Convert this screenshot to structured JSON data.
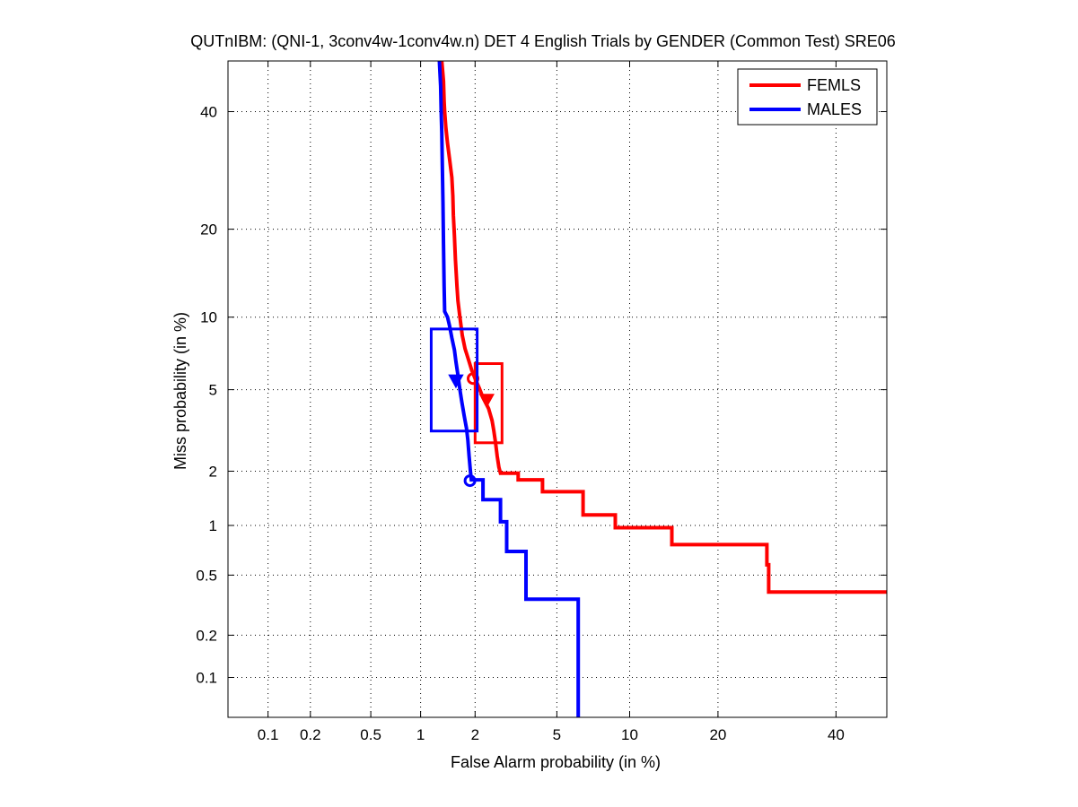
{
  "chart_data": {
    "type": "line",
    "subtype": "DET (normal deviate scale)",
    "title": "QUTnIBM: (QNI-1, 3conv4w-1conv4w.n) DET 4 English Trials by GENDER (Common Test) SRE06",
    "xlabel": "False Alarm probability (in %)",
    "ylabel": "Miss probability (in %)",
    "xlim": [
      0.05,
      50
    ],
    "ylim": [
      0.05,
      50
    ],
    "x_ticks": [
      0.1,
      0.2,
      0.5,
      1,
      2,
      5,
      10,
      20,
      40
    ],
    "x_tick_labels": [
      "0.1",
      "0.2",
      "0.5",
      "1",
      "2",
      "5",
      "10",
      "20",
      "40"
    ],
    "y_ticks": [
      0.1,
      0.2,
      0.5,
      1,
      2,
      5,
      10,
      20,
      40
    ],
    "y_tick_labels": [
      "0.1",
      "0.2",
      "0.5",
      "1",
      "2",
      "5",
      "10",
      "20",
      "40"
    ],
    "grid": true,
    "legend_position": "top-right",
    "series": [
      {
        "name": "FEMLS",
        "color": "#ff0000",
        "points": [
          [
            1.32,
            50
          ],
          [
            1.35,
            46
          ],
          [
            1.36,
            42
          ],
          [
            1.37,
            40
          ],
          [
            1.39,
            37
          ],
          [
            1.42,
            34
          ],
          [
            1.46,
            31
          ],
          [
            1.5,
            28
          ],
          [
            1.52,
            25
          ],
          [
            1.53,
            22
          ],
          [
            1.55,
            19
          ],
          [
            1.57,
            16
          ],
          [
            1.6,
            13
          ],
          [
            1.62,
            11.5
          ],
          [
            1.66,
            10
          ],
          [
            1.71,
            8.5
          ],
          [
            1.77,
            7.5
          ],
          [
            1.84,
            6.8
          ],
          [
            1.92,
            6.1
          ],
          [
            2.0,
            5.6
          ],
          [
            2.1,
            5.1
          ],
          [
            2.2,
            4.6
          ],
          [
            2.35,
            4.1
          ],
          [
            2.45,
            3.6
          ],
          [
            2.5,
            3.2
          ],
          [
            2.55,
            2.8
          ],
          [
            2.6,
            2.4
          ],
          [
            2.65,
            2.1
          ],
          [
            2.7,
            1.95
          ],
          [
            3.3,
            1.95
          ],
          [
            3.3,
            1.8
          ],
          [
            4.3,
            1.8
          ],
          [
            4.3,
            1.55
          ],
          [
            6.5,
            1.55
          ],
          [
            6.5,
            1.15
          ],
          [
            8.8,
            1.15
          ],
          [
            8.8,
            0.97
          ],
          [
            14.2,
            0.97
          ],
          [
            14.2,
            0.77
          ],
          [
            27.5,
            0.77
          ],
          [
            27.5,
            0.58
          ],
          [
            27.8,
            0.58
          ],
          [
            27.8,
            0.39
          ],
          [
            50,
            0.39
          ]
        ],
        "markers": [
          {
            "shape": "circle",
            "x": 1.95,
            "y": 5.6
          },
          {
            "shape": "triangle-down",
            "x": 2.3,
            "y": 4.5
          }
        ],
        "confidence_box": {
          "x": [
            2.0,
            2.75
          ],
          "y": [
            2.8,
            6.5
          ]
        }
      },
      {
        "name": "MALES",
        "color": "#0000ff",
        "points": [
          [
            1.28,
            50
          ],
          [
            1.3,
            45
          ],
          [
            1.31,
            40
          ],
          [
            1.32,
            36
          ],
          [
            1.33,
            30
          ],
          [
            1.34,
            24
          ],
          [
            1.35,
            18
          ],
          [
            1.36,
            13
          ],
          [
            1.37,
            10.5
          ],
          [
            1.42,
            10
          ],
          [
            1.46,
            9.2
          ],
          [
            1.5,
            8.3
          ],
          [
            1.55,
            7.4
          ],
          [
            1.58,
            6.6
          ],
          [
            1.62,
            5.8
          ],
          [
            1.66,
            5.0
          ],
          [
            1.7,
            4.4
          ],
          [
            1.75,
            3.8
          ],
          [
            1.8,
            3.3
          ],
          [
            1.83,
            2.9
          ],
          [
            1.86,
            2.4
          ],
          [
            1.89,
            2.0
          ],
          [
            1.91,
            1.8
          ],
          [
            2.2,
            1.8
          ],
          [
            2.2,
            1.4
          ],
          [
            2.7,
            1.4
          ],
          [
            2.7,
            1.05
          ],
          [
            2.9,
            1.05
          ],
          [
            2.9,
            0.7
          ],
          [
            3.6,
            0.7
          ],
          [
            3.6,
            0.35
          ],
          [
            6.2,
            0.35
          ],
          [
            6.2,
            0.05
          ]
        ],
        "markers": [
          {
            "shape": "triangle-down",
            "x": 1.58,
            "y": 5.5
          },
          {
            "shape": "circle",
            "x": 1.88,
            "y": 1.78
          }
        ],
        "confidence_box": {
          "x": [
            1.15,
            2.05
          ],
          "y": [
            3.2,
            9.0
          ]
        }
      }
    ]
  }
}
